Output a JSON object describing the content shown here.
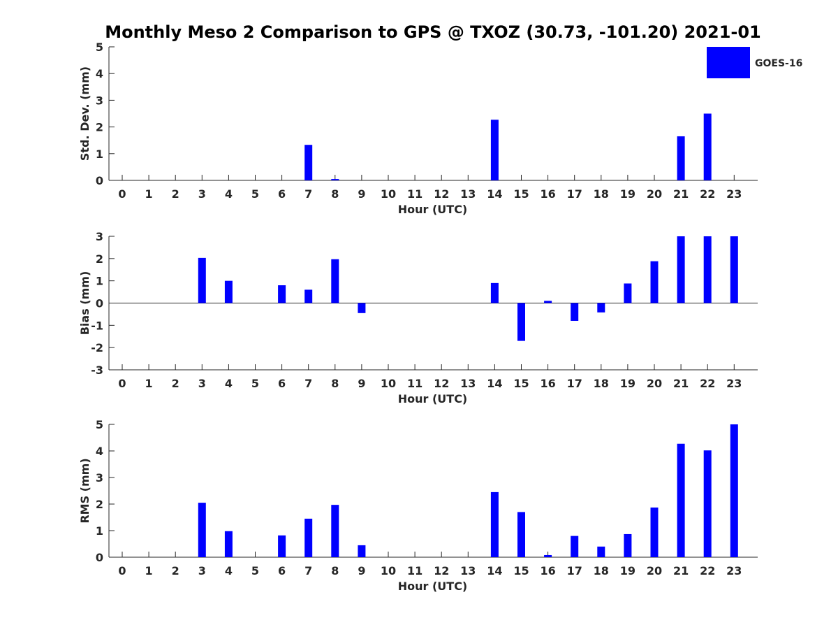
{
  "chart_data": [
    {
      "type": "bar",
      "title": "Monthly Meso 2 Comparison to GPS @ TXOZ (30.73, -101.20) 2021-01",
      "xlabel": "Hour (UTC)",
      "ylabel": "Std. Dev. (mm)",
      "ylim": [
        0,
        5
      ],
      "yticks": [
        0,
        1,
        2,
        3,
        4,
        5
      ],
      "categories": [
        "0",
        "1",
        "2",
        "3",
        "4",
        "5",
        "6",
        "7",
        "8",
        "9",
        "10",
        "11",
        "12",
        "13",
        "14",
        "15",
        "16",
        "17",
        "18",
        "19",
        "20",
        "21",
        "22",
        "23"
      ],
      "series": [
        {
          "name": "GOES-16",
          "color": "#0000ff",
          "values": [
            0,
            0,
            0,
            0,
            0,
            0,
            0,
            1.33,
            0.05,
            0,
            0,
            0,
            0,
            0,
            2.27,
            0,
            0,
            0,
            0,
            0,
            0,
            1.65,
            2.5,
            0
          ]
        }
      ],
      "legend": {
        "position": "top-right"
      }
    },
    {
      "type": "bar",
      "xlabel": "Hour (UTC)",
      "ylabel": "Bias (mm)",
      "ylim": [
        -3,
        3
      ],
      "yticks": [
        -3,
        -2,
        -1,
        0,
        1,
        2,
        3
      ],
      "categories": [
        "0",
        "1",
        "2",
        "3",
        "4",
        "5",
        "6",
        "7",
        "8",
        "9",
        "10",
        "11",
        "12",
        "13",
        "14",
        "15",
        "16",
        "17",
        "18",
        "19",
        "20",
        "21",
        "22",
        "23"
      ],
      "series": [
        {
          "name": "GOES-16",
          "color": "#0000ff",
          "values": [
            0,
            0,
            0,
            2.03,
            1.0,
            0,
            0.8,
            0.6,
            1.97,
            -0.45,
            0,
            0,
            0,
            0,
            0.9,
            -1.7,
            0.1,
            -0.8,
            -0.42,
            0.88,
            1.88,
            3.0,
            3.0,
            3.0
          ]
        }
      ]
    },
    {
      "type": "bar",
      "xlabel": "Hour (UTC)",
      "ylabel": "RMS (mm)",
      "ylim": [
        0,
        5
      ],
      "yticks": [
        0,
        1,
        2,
        3,
        4,
        5
      ],
      "categories": [
        "0",
        "1",
        "2",
        "3",
        "4",
        "5",
        "6",
        "7",
        "8",
        "9",
        "10",
        "11",
        "12",
        "13",
        "14",
        "15",
        "16",
        "17",
        "18",
        "19",
        "20",
        "21",
        "22",
        "23"
      ],
      "series": [
        {
          "name": "GOES-16",
          "color": "#0000ff",
          "values": [
            0,
            0,
            0,
            2.05,
            0.98,
            0,
            0.82,
            1.45,
            1.97,
            0.45,
            0,
            0,
            0,
            0,
            2.45,
            1.7,
            0.08,
            0.8,
            0.4,
            0.87,
            1.87,
            4.27,
            4.02,
            5.0
          ]
        }
      ]
    }
  ]
}
